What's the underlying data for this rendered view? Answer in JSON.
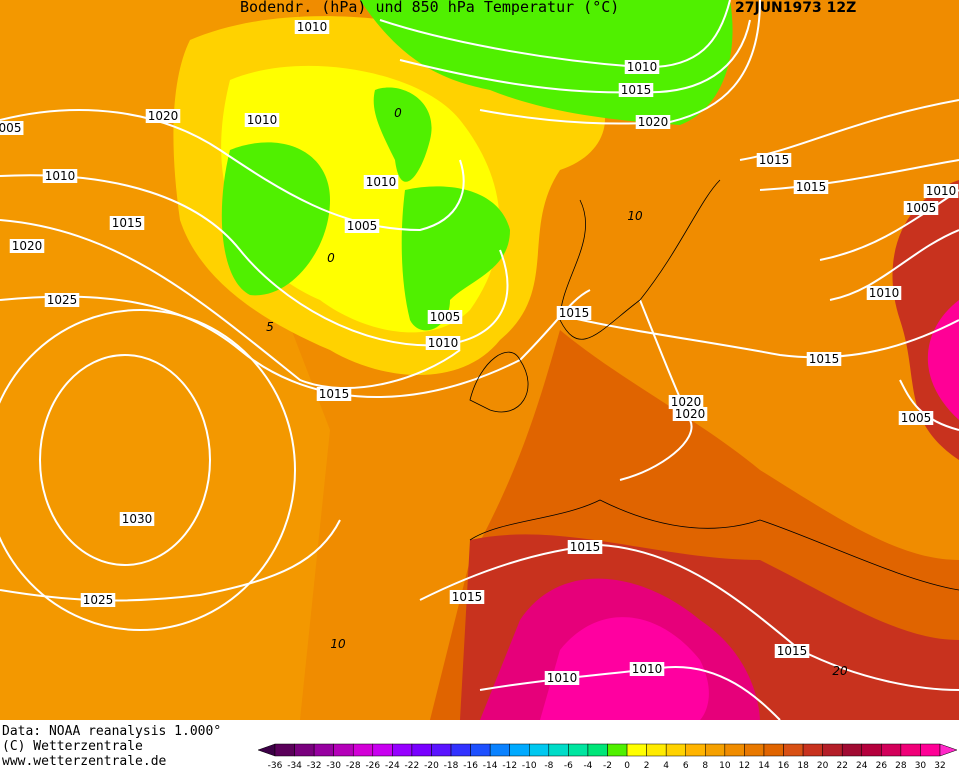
{
  "header": {
    "title": "Bodendr. (hPa) und 850 hPa Temperatur (°C)",
    "date": "27JUN1973 12Z"
  },
  "footer": {
    "lines": [
      "Data: NOAA reanalysis 1.000°",
      "(C) Wetterzentrale",
      "www.wetterzentrale.de"
    ]
  },
  "isobar_labels": [
    "1010",
    "1010",
    "1015",
    "1020",
    "1020",
    "1010",
    "005",
    "1010",
    "1010",
    "1015",
    "1015",
    "1010",
    "1005",
    "1015",
    "1005",
    "1020",
    "1025",
    "1010",
    "1015",
    "1005",
    "1010",
    "1015",
    "1015",
    "1020",
    "1020",
    "1005",
    "1030",
    "1015",
    "1025",
    "1015",
    "1015",
    "1010",
    "1010"
  ],
  "temperature_labels": [
    "0",
    "5",
    "10",
    "20",
    "10",
    "0"
  ],
  "colorbar": {
    "labels": [
      -36,
      -34,
      -32,
      -30,
      -28,
      -26,
      -24,
      -22,
      -20,
      -18,
      -16,
      -14,
      -12,
      -10,
      -8,
      -6,
      -4,
      -2,
      0,
      2,
      4,
      6,
      8,
      10,
      12,
      14,
      16,
      18,
      20,
      22,
      24,
      26,
      28,
      30,
      32
    ],
    "colors": [
      "#3c0046",
      "#5a005a",
      "#78007d",
      "#9600a0",
      "#b400b9",
      "#d200d7",
      "#c800f0",
      "#9600ff",
      "#7800ff",
      "#5a14ff",
      "#3232ff",
      "#1e50ff",
      "#0a82ff",
      "#00aaff",
      "#00c8f0",
      "#00dcc8",
      "#00e6a0",
      "#00e678",
      "#50f000",
      "#ffff00",
      "#ffeb00",
      "#ffd200",
      "#ffb400",
      "#f5a000",
      "#f08c00",
      "#e87800",
      "#e06400",
      "#d85014",
      "#c8321e",
      "#b41e28",
      "#a00a32",
      "#b4003c",
      "#d2005a",
      "#f00078",
      "#ff0096",
      "#ff28c8"
    ]
  }
}
